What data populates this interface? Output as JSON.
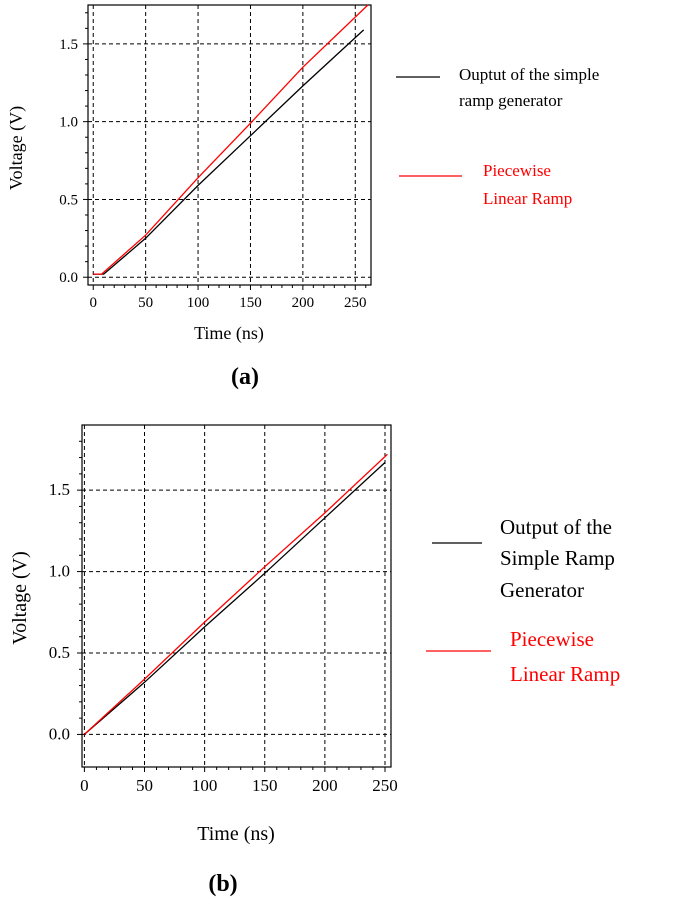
{
  "charts": [
    {
      "caption": "(a)",
      "xlabel": "Time (ns)",
      "ylabel": "Voltage (V)",
      "legend": [
        {
          "lines": [
            "Ouptut of the simple",
            "ramp generator"
          ],
          "color": "#000000"
        },
        {
          "lines": [
            "Piecewise",
            "Linear Ramp"
          ],
          "color": "#ff0000"
        }
      ]
    },
    {
      "caption": "(b)",
      "xlabel": "Time (ns)",
      "ylabel": "Voltage (V)",
      "legend": [
        {
          "lines": [
            "Output of the",
            "Simple Ramp",
            "Generator"
          ],
          "color": "#000000"
        },
        {
          "lines": [
            "Piecewise",
            "Linear Ramp"
          ],
          "color": "#ff0000"
        }
      ]
    }
  ],
  "chart_data": [
    {
      "type": "line",
      "xlabel": "Time (ns)",
      "ylabel": "Voltage (V)",
      "xlim": [
        -5,
        265
      ],
      "ylim": [
        -0.05,
        1.75
      ],
      "xticks": [
        0,
        50,
        100,
        150,
        200,
        250
      ],
      "xtick_labels": [
        "0",
        "50",
        "100",
        "150",
        "200",
        "250"
      ],
      "yticks": [
        0.0,
        0.5,
        1.0,
        1.5
      ],
      "ytick_labels": [
        "0.0",
        "0.5",
        "1.0",
        "1.5"
      ],
      "grid": true,
      "legend_position": "right",
      "series": [
        {
          "name": "Ouptut of the simple ramp generator",
          "color": "#000000",
          "x": [
            0,
            10,
            50,
            100,
            150,
            200,
            258
          ],
          "y": [
            0.02,
            0.02,
            0.25,
            0.59,
            0.91,
            1.23,
            1.59
          ]
        },
        {
          "name": "Piecewise Linear Ramp",
          "color": "#ff0000",
          "x": [
            0,
            8,
            50,
            100,
            150,
            200,
            262
          ],
          "y": [
            0.02,
            0.02,
            0.27,
            0.64,
            0.99,
            1.35,
            1.75
          ]
        }
      ]
    },
    {
      "type": "line",
      "xlabel": "Time (ns)",
      "ylabel": "Voltage (V)",
      "xlim": [
        -2,
        255
      ],
      "ylim": [
        -0.2,
        1.9
      ],
      "xticks": [
        0,
        50,
        100,
        150,
        200,
        250
      ],
      "xtick_labels": [
        "0",
        "50",
        "100",
        "150",
        "200",
        "250"
      ],
      "yticks": [
        0.0,
        0.5,
        1.0,
        1.5
      ],
      "ytick_labels": [
        "0.0",
        "0.5",
        "1.0",
        "1.5"
      ],
      "grid": true,
      "legend_position": "right",
      "series": [
        {
          "name": "Output of the Simple Ramp Generator",
          "color": "#000000",
          "x": [
            0,
            50,
            100,
            150,
            200,
            250
          ],
          "y": [
            0.0,
            0.32,
            0.66,
            0.99,
            1.33,
            1.67
          ]
        },
        {
          "name": "Piecewise Linear Ramp",
          "color": "#ff0000",
          "x": [
            0,
            50,
            100,
            150,
            200,
            252
          ],
          "y": [
            0.0,
            0.34,
            0.69,
            1.03,
            1.36,
            1.72
          ]
        }
      ]
    }
  ]
}
